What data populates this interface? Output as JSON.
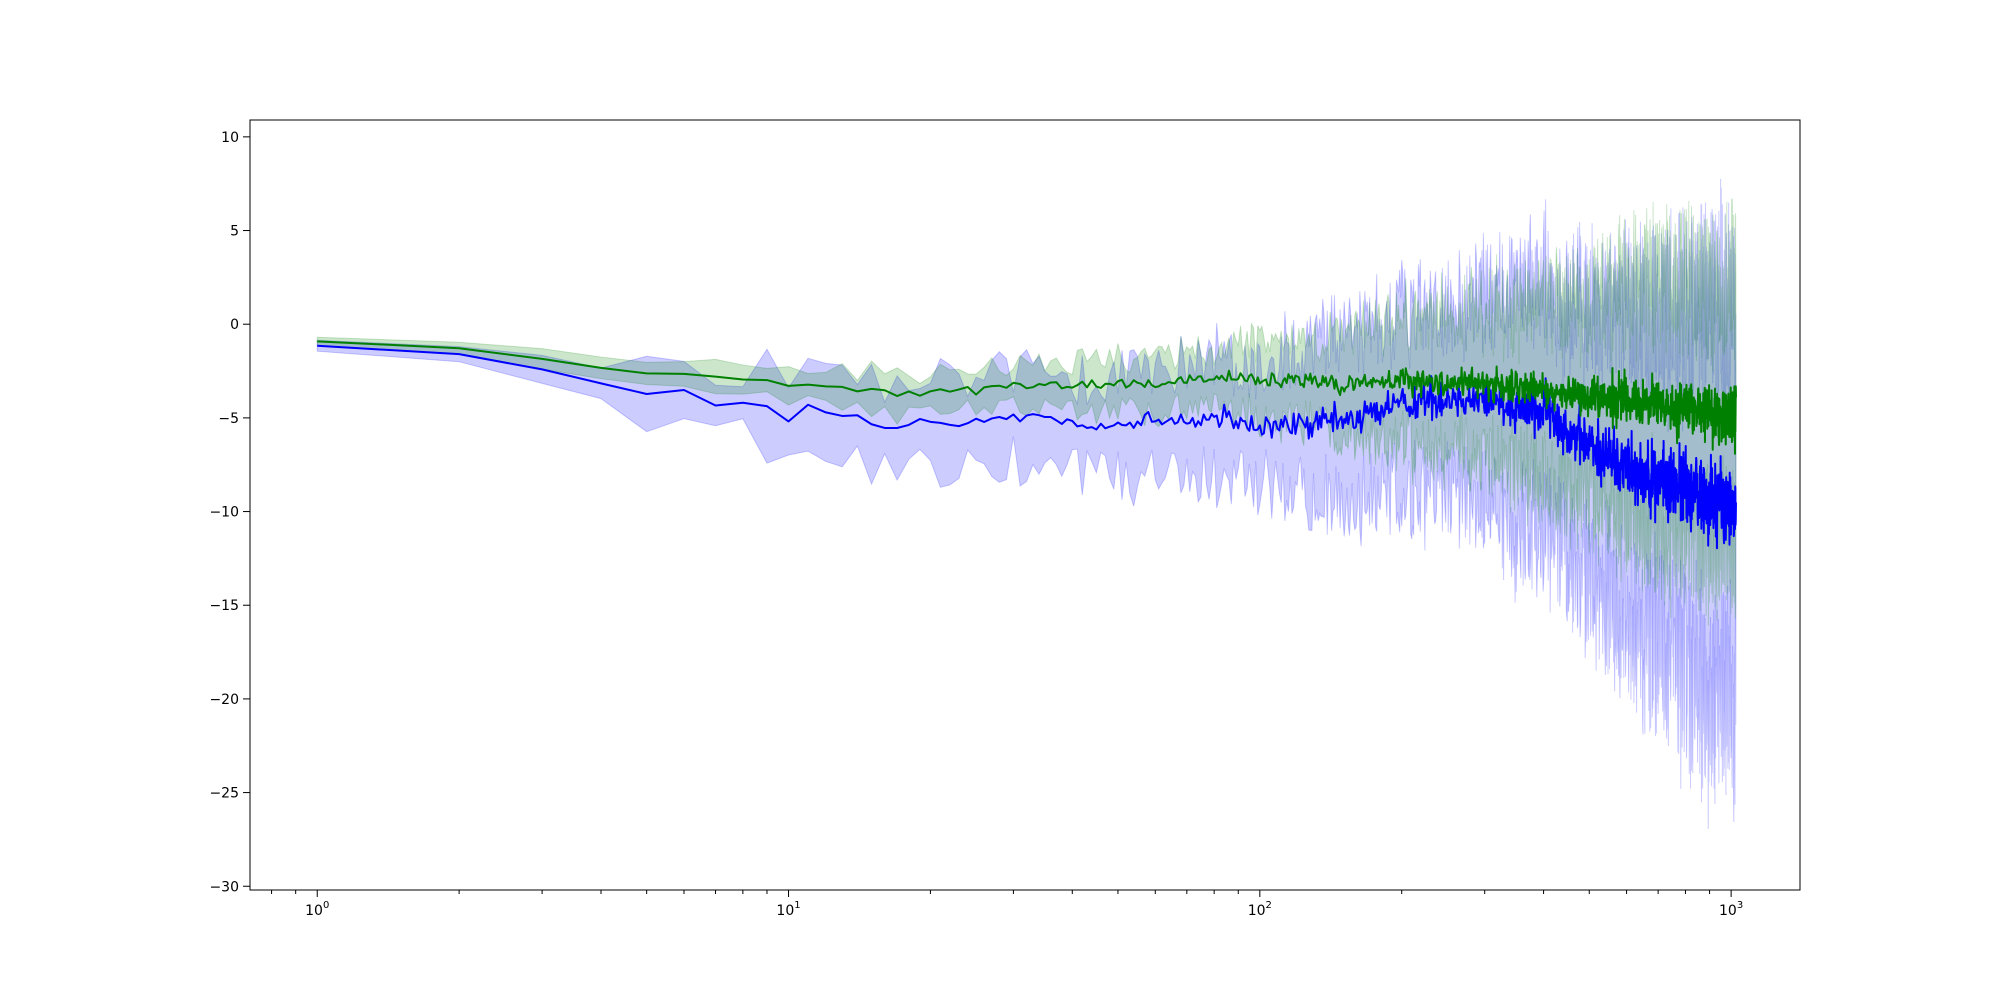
{
  "chart_data": {
    "type": "line",
    "title": "",
    "xlabel": "",
    "ylabel": "",
    "xscale": "log",
    "xlim": [
      0.72,
      1400
    ],
    "ylim": [
      -30.2,
      10.9
    ],
    "grid": false,
    "x_ticks": [
      {
        "value": 1,
        "base": "10",
        "exp": "0"
      },
      {
        "value": 10,
        "base": "10",
        "exp": "1"
      },
      {
        "value": 100,
        "base": "10",
        "exp": "2"
      },
      {
        "value": 1000,
        "base": "10",
        "exp": "3"
      }
    ],
    "y_ticks": [
      {
        "value": 10,
        "label": "10"
      },
      {
        "value": 5,
        "label": "5"
      },
      {
        "value": 0,
        "label": "0"
      },
      {
        "value": -5,
        "label": "−5"
      },
      {
        "value": -10,
        "label": "−10"
      },
      {
        "value": -15,
        "label": "−15"
      },
      {
        "value": -20,
        "label": "−20"
      },
      {
        "value": -25,
        "label": "−25"
      },
      {
        "value": -30,
        "label": "−30"
      }
    ],
    "x_range": [
      1,
      1024
    ],
    "series": [
      {
        "color": "#0000ff",
        "fill_alpha": 0.2,
        "anchors": [
          [
            1,
            -1.1,
            0.3
          ],
          [
            2,
            -1.6,
            0.45
          ],
          [
            3,
            -2.4,
            0.7
          ],
          [
            4,
            -3.2,
            1.0
          ],
          [
            5,
            -3.8,
            1.6
          ],
          [
            6,
            -3.7,
            1.8
          ],
          [
            7,
            -4.3,
            2.0
          ],
          [
            8,
            -4.1,
            2.1
          ],
          [
            9,
            -4.3,
            2.4
          ],
          [
            10,
            -5.0,
            2.6
          ],
          [
            11,
            -4.6,
            2.5
          ],
          [
            12,
            -4.8,
            2.4
          ],
          [
            14,
            -5.0,
            2.8
          ],
          [
            16,
            -5.8,
            2.6
          ],
          [
            18,
            -5.2,
            2.4
          ],
          [
            20,
            -5.5,
            2.8
          ],
          [
            22,
            -5.6,
            2.9
          ],
          [
            25,
            -5.2,
            3.0
          ],
          [
            30,
            -4.9,
            2.8
          ],
          [
            35,
            -5.0,
            2.9
          ],
          [
            40,
            -5.2,
            3.0
          ],
          [
            50,
            -5.4,
            3.2
          ],
          [
            60,
            -5.2,
            3.4
          ],
          [
            70,
            -5.1,
            3.6
          ],
          [
            80,
            -5.0,
            3.8
          ],
          [
            100,
            -5.6,
            4.0
          ],
          [
            120,
            -5.4,
            4.5
          ],
          [
            150,
            -5.2,
            5.0
          ],
          [
            200,
            -4.2,
            5.5
          ],
          [
            250,
            -3.9,
            6.0
          ],
          [
            300,
            -4.0,
            6.5
          ],
          [
            400,
            -4.6,
            7.5
          ],
          [
            500,
            -6.5,
            8.5
          ],
          [
            600,
            -7.5,
            9.5
          ],
          [
            700,
            -8.3,
            10.5
          ],
          [
            800,
            -8.8,
            11.5
          ],
          [
            900,
            -9.2,
            12.0
          ],
          [
            1024,
            -10.0,
            12.0
          ]
        ]
      },
      {
        "color": "#008000",
        "fill_alpha": 0.2,
        "anchors": [
          [
            1,
            -0.9,
            0.2
          ],
          [
            2,
            -1.3,
            0.35
          ],
          [
            3,
            -1.8,
            0.5
          ],
          [
            4,
            -2.4,
            0.7
          ],
          [
            6,
            -2.8,
            0.9
          ],
          [
            8,
            -2.9,
            1.0
          ],
          [
            10,
            -3.1,
            1.1
          ],
          [
            12,
            -3.2,
            1.2
          ],
          [
            15,
            -3.5,
            1.3
          ],
          [
            20,
            -3.6,
            1.4
          ],
          [
            30,
            -3.3,
            1.5
          ],
          [
            40,
            -3.3,
            1.6
          ],
          [
            60,
            -3.1,
            1.7
          ],
          [
            80,
            -2.9,
            1.8
          ],
          [
            100,
            -3.0,
            2.3
          ],
          [
            150,
            -3.2,
            3.0
          ],
          [
            200,
            -3.0,
            3.8
          ],
          [
            300,
            -3.2,
            4.6
          ],
          [
            400,
            -3.5,
            5.5
          ],
          [
            500,
            -3.8,
            6.5
          ],
          [
            600,
            -4.0,
            7.2
          ],
          [
            700,
            -4.3,
            7.8
          ],
          [
            800,
            -4.6,
            8.0
          ],
          [
            1024,
            -5.0,
            8.5
          ]
        ]
      }
    ]
  }
}
